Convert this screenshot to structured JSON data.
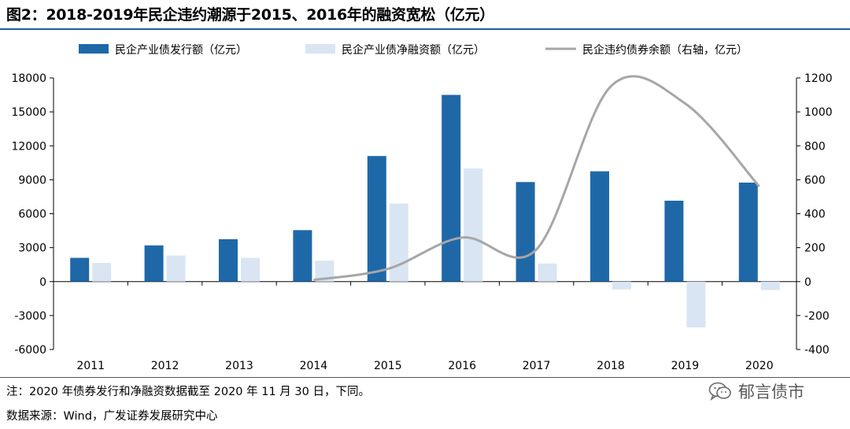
{
  "figure": {
    "title": "图2：2018-2019年民企违约潮源于2015、2016年的融资宽松（亿元）",
    "note": "注：2020 年债券发行和净融资数据截至 2020 年 11 月 30 日，下同。",
    "source": "数据来源：Wind，广发证券发展研究中心",
    "watermark": "郁言债市",
    "watermark_icon": "wechat-icon"
  },
  "colors": {
    "issuance": "#1f68a8",
    "net_financing": "#d9e5f2",
    "default_line": "#a6a6a6",
    "axis": "#000000"
  },
  "chart_data": {
    "type": "bar",
    "title": "2018-2019年民企违约潮源于2015、2016年的融资宽松（亿元）",
    "categories": [
      "2011",
      "2012",
      "2013",
      "2014",
      "2015",
      "2016",
      "2017",
      "2018",
      "2019",
      "2020"
    ],
    "series": [
      {
        "name": "民企产业债发行额（亿元）",
        "type": "bar",
        "axis": "left",
        "values": [
          2100,
          3200,
          3750,
          4550,
          11100,
          16500,
          8800,
          9750,
          7150,
          8750
        ]
      },
      {
        "name": "民企产业债净融资额（亿元）",
        "type": "bar",
        "axis": "left",
        "values": [
          1650,
          2300,
          2100,
          1850,
          6900,
          10000,
          1600,
          -700,
          -4050,
          -750
        ]
      },
      {
        "name": "民企违约债券余额（右轴，亿元）",
        "type": "line",
        "axis": "right",
        "values": [
          null,
          null,
          null,
          10,
          75,
          260,
          190,
          1150,
          1050,
          560
        ]
      }
    ],
    "y_left": {
      "min": -6000,
      "max": 18000,
      "ticks": [
        "-6000",
        "-3000",
        "0",
        "3000",
        "6000",
        "9000",
        "12000",
        "15000",
        "18000"
      ]
    },
    "y_right": {
      "min": -400,
      "max": 1200,
      "ticks": [
        "-400",
        "-200",
        "0",
        "200",
        "400",
        "600",
        "800",
        "1000",
        "1200"
      ]
    },
    "legend_position": "top",
    "grid": false
  }
}
